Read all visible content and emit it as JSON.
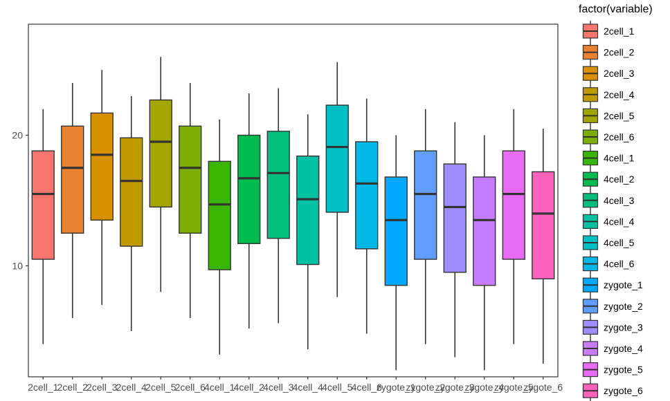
{
  "chart_data": {
    "type": "box",
    "title": "",
    "xlabel": "",
    "ylabel": "",
    "ylim": [
      1.5,
      28.5
    ],
    "y_ticks": [
      10,
      20
    ],
    "grid": false,
    "legend": {
      "title": "factor(variable)",
      "placement": "right"
    },
    "categories": [
      "2cell_1",
      "2cell_2",
      "2cell_3",
      "2cell_4",
      "2cell_5",
      "2cell_6",
      "4cell_1",
      "4cell_2",
      "4cell_3",
      "4cell_4",
      "4cell_5",
      "4cell_6",
      "zygote_1",
      "zygote_2",
      "zygote_3",
      "zygote_4",
      "zygote_5",
      "zygote_6"
    ],
    "boxes": [
      {
        "name": "2cell_1",
        "color": "#F8766D",
        "whisker_low": 4.0,
        "q1": 10.5,
        "median": 15.5,
        "q3": 18.8,
        "whisker_high": 22.0
      },
      {
        "name": "2cell_2",
        "color": "#EA8331",
        "whisker_low": 6.0,
        "q1": 12.5,
        "median": 17.5,
        "q3": 20.7,
        "whisker_high": 24.0
      },
      {
        "name": "2cell_3",
        "color": "#D89000",
        "whisker_low": 7.0,
        "q1": 13.5,
        "median": 18.5,
        "q3": 21.7,
        "whisker_high": 25.0
      },
      {
        "name": "2cell_4",
        "color": "#C09B00",
        "whisker_low": 5.0,
        "q1": 11.5,
        "median": 16.5,
        "q3": 19.8,
        "whisker_high": 23.0
      },
      {
        "name": "2cell_5",
        "color": "#A3A500",
        "whisker_low": 8.0,
        "q1": 14.5,
        "median": 19.5,
        "q3": 22.7,
        "whisker_high": 26.0
      },
      {
        "name": "2cell_6",
        "color": "#7CAE00",
        "whisker_low": 6.0,
        "q1": 12.5,
        "median": 17.5,
        "q3": 20.7,
        "whisker_high": 24.0
      },
      {
        "name": "4cell_1",
        "color": "#39B600",
        "whisker_low": 3.2,
        "q1": 9.7,
        "median": 14.7,
        "q3": 18.0,
        "whisker_high": 21.2
      },
      {
        "name": "4cell_2",
        "color": "#00BB4E",
        "whisker_low": 5.2,
        "q1": 11.7,
        "median": 16.7,
        "q3": 20.0,
        "whisker_high": 23.2
      },
      {
        "name": "4cell_3",
        "color": "#00BF7D",
        "whisker_low": 5.6,
        "q1": 12.1,
        "median": 17.1,
        "q3": 20.3,
        "whisker_high": 23.6
      },
      {
        "name": "4cell_4",
        "color": "#00C1A3",
        "whisker_low": 3.6,
        "q1": 10.1,
        "median": 15.1,
        "q3": 18.4,
        "whisker_high": 21.6
      },
      {
        "name": "4cell_5",
        "color": "#00BFC4",
        "whisker_low": 7.6,
        "q1": 14.1,
        "median": 19.1,
        "q3": 22.3,
        "whisker_high": 25.6
      },
      {
        "name": "4cell_6",
        "color": "#00B8E5",
        "whisker_low": 4.8,
        "q1": 11.3,
        "median": 16.3,
        "q3": 19.5,
        "whisker_high": 22.8
      },
      {
        "name": "zygote_1",
        "color": "#00A9FF",
        "whisker_low": 2.0,
        "q1": 8.5,
        "median": 13.5,
        "q3": 16.8,
        "whisker_high": 20.0
      },
      {
        "name": "zygote_2",
        "color": "#619CFF",
        "whisker_low": 4.0,
        "q1": 10.5,
        "median": 15.5,
        "q3": 18.8,
        "whisker_high": 22.0
      },
      {
        "name": "zygote_3",
        "color": "#9F8CFF",
        "whisker_low": 3.0,
        "q1": 9.5,
        "median": 14.5,
        "q3": 17.8,
        "whisker_high": 21.0
      },
      {
        "name": "zygote_4",
        "color": "#C77CFF",
        "whisker_low": 2.0,
        "q1": 8.5,
        "median": 13.5,
        "q3": 16.8,
        "whisker_high": 20.0
      },
      {
        "name": "zygote_5",
        "color": "#E76BF3",
        "whisker_low": 4.0,
        "q1": 10.5,
        "median": 15.5,
        "q3": 18.8,
        "whisker_high": 22.0
      },
      {
        "name": "zygote_6",
        "color": "#FF62BC",
        "whisker_low": 2.5,
        "q1": 9.0,
        "median": 14.0,
        "q3": 17.2,
        "whisker_high": 20.5
      }
    ],
    "legend_entries": [
      {
        "label": "2cell_1",
        "color": "#F8766D"
      },
      {
        "label": "2cell_2",
        "color": "#EA8331"
      },
      {
        "label": "2cell_3",
        "color": "#D89000"
      },
      {
        "label": "2cell_4",
        "color": "#C09B00"
      },
      {
        "label": "2cell_5",
        "color": "#A3A500"
      },
      {
        "label": "2cell_6",
        "color": "#7CAE00"
      },
      {
        "label": "4cell_1",
        "color": "#39B600"
      },
      {
        "label": "4cell_2",
        "color": "#00BB4E"
      },
      {
        "label": "4cell_3",
        "color": "#00BF7D"
      },
      {
        "label": "4cell_4",
        "color": "#00C1A3"
      },
      {
        "label": "4cell_5",
        "color": "#00BFC4"
      },
      {
        "label": "4cell_6",
        "color": "#00B8E5"
      },
      {
        "label": "zygote_1",
        "color": "#00A9FF"
      },
      {
        "label": "zygote_2",
        "color": "#619CFF"
      },
      {
        "label": "zygote_3",
        "color": "#9F8CFF"
      },
      {
        "label": "zygote_4",
        "color": "#C77CFF"
      },
      {
        "label": "zygote_5",
        "color": "#E76BF3"
      },
      {
        "label": "zygote_6",
        "color": "#FF62BC"
      }
    ]
  }
}
